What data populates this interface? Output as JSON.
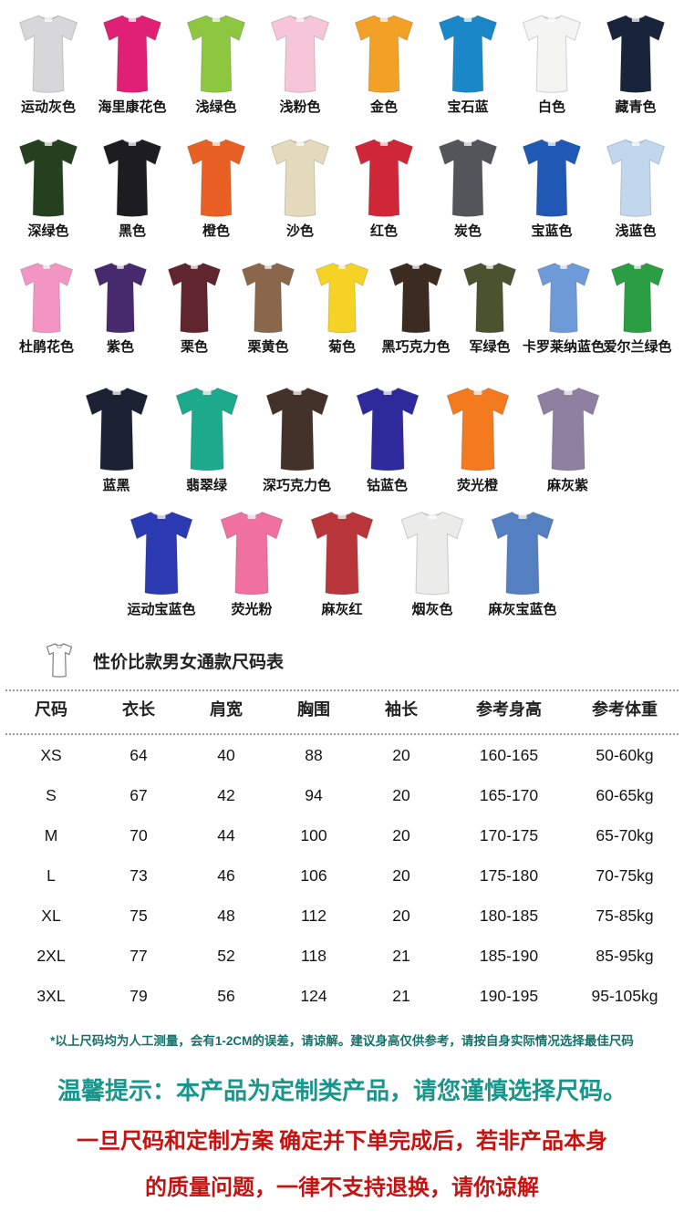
{
  "color_rows": [
    {
      "shirts": [
        {
          "label": "运动灰色",
          "color": "#d7d7d9"
        },
        {
          "label": "海里康花色",
          "color": "#df2074"
        },
        {
          "label": "浅绿色",
          "color": "#8dc63f"
        },
        {
          "label": "浅粉色",
          "color": "#f6c6d8"
        },
        {
          "label": "金色",
          "color": "#f2a126"
        },
        {
          "label": "宝石蓝",
          "color": "#1a87c9"
        },
        {
          "label": "白色",
          "color": "#f4f4f1"
        },
        {
          "label": "藏青色",
          "color": "#18243a"
        }
      ]
    },
    {
      "shirts": [
        {
          "label": "深绿色",
          "color": "#24401f"
        },
        {
          "label": "黑色",
          "color": "#1d1d21"
        },
        {
          "label": "橙色",
          "color": "#e96024"
        },
        {
          "label": "沙色",
          "color": "#e4dabc"
        },
        {
          "label": "红色",
          "color": "#cf2737"
        },
        {
          "label": "炭色",
          "color": "#53555a"
        },
        {
          "label": "宝蓝色",
          "color": "#2059b5"
        },
        {
          "label": "浅蓝色",
          "color": "#c0d7ee"
        }
      ]
    },
    {
      "shirts": [
        {
          "label": "杜鹃花色",
          "color": "#f295c2"
        },
        {
          "label": "紫色",
          "color": "#472a6e"
        },
        {
          "label": "栗色",
          "color": "#60252f"
        },
        {
          "label": "栗黄色",
          "color": "#8a674a"
        },
        {
          "label": "菊色",
          "color": "#f4d325"
        },
        {
          "label": "黑巧克力色",
          "color": "#3c2b21"
        },
        {
          "label": "军绿色",
          "color": "#4a5230"
        },
        {
          "label": "卡罗莱纳蓝色",
          "color": "#6f9ad8"
        },
        {
          "label": "爱尔兰绿色",
          "color": "#2b9e44"
        }
      ]
    },
    {
      "shirts": [
        {
          "label": "蓝黑",
          "color": "#1b2132"
        },
        {
          "label": "翡翠绿",
          "color": "#1ca98c"
        },
        {
          "label": "深巧克力色",
          "color": "#433229"
        },
        {
          "label": "钴蓝色",
          "color": "#2f2a9b"
        },
        {
          "label": "荧光橙",
          "color": "#f47a1f"
        },
        {
          "label": "麻灰紫",
          "color": "#8f7fa0"
        }
      ]
    },
    {
      "shirts": [
        {
          "label": "运动宝蓝色",
          "color": "#2c3ab1"
        },
        {
          "label": "荧光粉",
          "color": "#f0709f"
        },
        {
          "label": "麻灰红",
          "color": "#b8363a"
        },
        {
          "label": "烟灰色",
          "color": "#ebebe9"
        },
        {
          "label": "麻灰宝蓝色",
          "color": "#5480c2"
        }
      ]
    }
  ],
  "size_chart": {
    "title": "性价比款男女通款尺码表",
    "title_icon": "tshirt-outline-icon",
    "columns": [
      "尺码",
      "衣长",
      "肩宽",
      "胸围",
      "袖长",
      "参考身高",
      "参考体重"
    ],
    "rows": [
      [
        "XS",
        "64",
        "40",
        "88",
        "20",
        "160-165",
        "50-60kg"
      ],
      [
        "S",
        "67",
        "42",
        "94",
        "20",
        "165-170",
        "60-65kg"
      ],
      [
        "M",
        "70",
        "44",
        "100",
        "20",
        "170-175",
        "65-70kg"
      ],
      [
        "L",
        "73",
        "46",
        "106",
        "20",
        "175-180",
        "70-75kg"
      ],
      [
        "XL",
        "75",
        "48",
        "112",
        "20",
        "180-185",
        "75-85kg"
      ],
      [
        "2XL",
        "77",
        "52",
        "118",
        "21",
        "185-190",
        "85-95kg"
      ],
      [
        "3XL",
        "79",
        "56",
        "124",
        "21",
        "190-195",
        "95-105kg"
      ]
    ]
  },
  "notes": {
    "measure_note": "*以上尺码均为人工测量，会有1-2CM的误差，请谅解。建议身高仅供参考，请按自身实际情况选择最佳尺码",
    "tip_line": "温馨提示：本产品为定制类产品，请您谨慎选择尺码。",
    "warning_line1": "一旦尺码和定制方案 确定并下单完成后，若非产品本身",
    "warning_line2": "的质量问题，一律不支持退换，请你谅解"
  },
  "colors": {
    "measure_note_teal": "#16706a",
    "tip_teal": "#18968c",
    "warning_red": "#c51311"
  }
}
